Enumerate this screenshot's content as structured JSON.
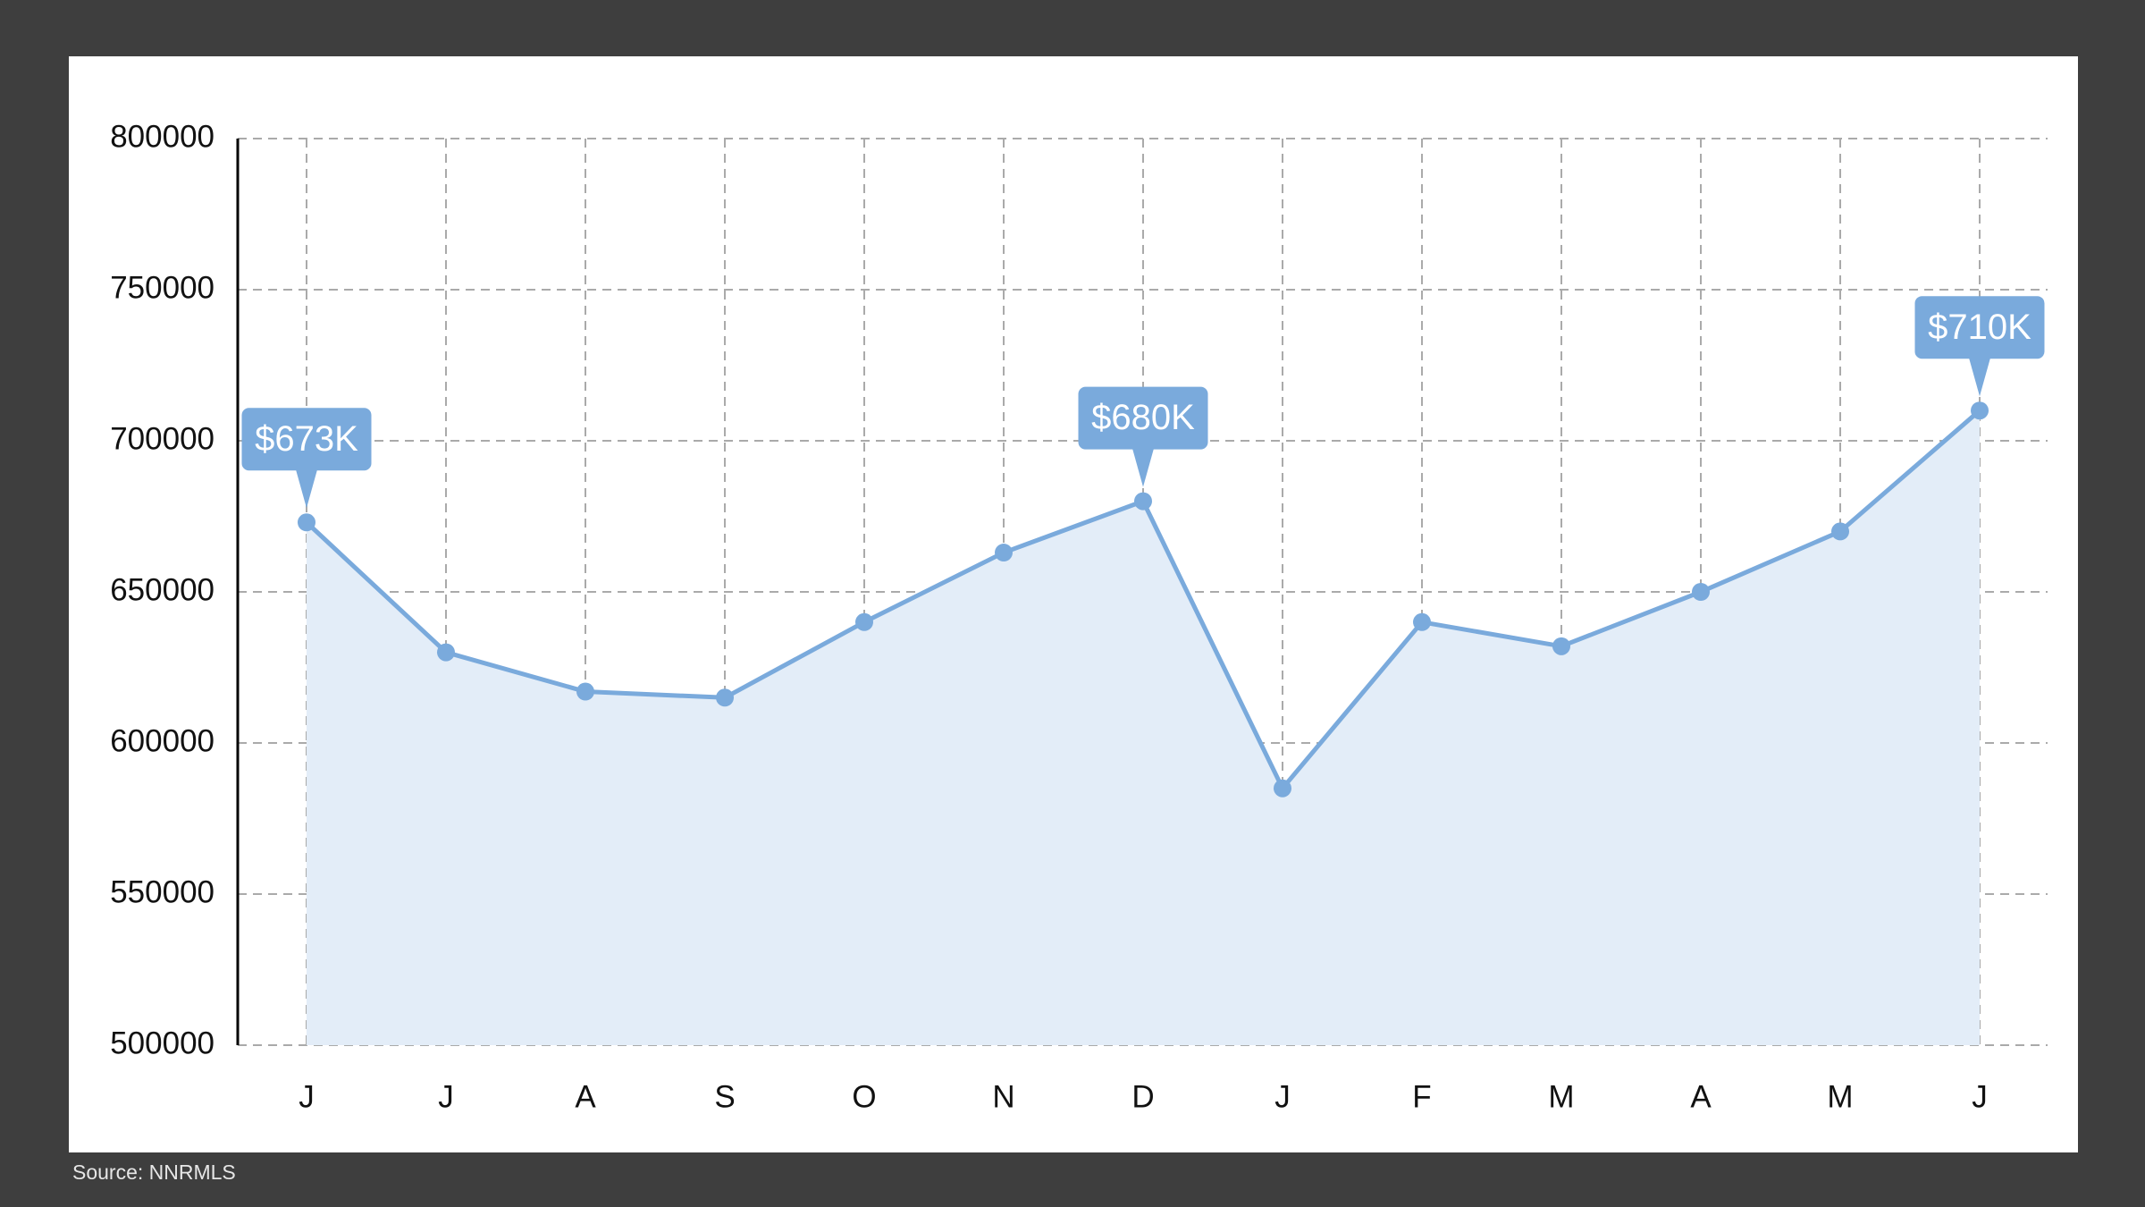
{
  "chart_data": {
    "type": "area",
    "categories": [
      "J",
      "J",
      "A",
      "S",
      "O",
      "N",
      "D",
      "J",
      "F",
      "M",
      "A",
      "M",
      "J"
    ],
    "values": [
      673000,
      630000,
      617000,
      615000,
      640000,
      663000,
      680000,
      585000,
      640000,
      632000,
      650000,
      670000,
      710000
    ],
    "value_labels": [
      "$673K",
      null,
      null,
      null,
      null,
      null,
      "$680K",
      null,
      null,
      null,
      null,
      null,
      "$710K"
    ],
    "color": "#7aaadc",
    "fill_color": "#e3edf8",
    "ylim": [
      500000,
      800000
    ],
    "yticks": [
      500000,
      550000,
      600000,
      650000,
      700000,
      750000,
      800000
    ],
    "grid": true,
    "source": "Source: NNRMLS"
  }
}
